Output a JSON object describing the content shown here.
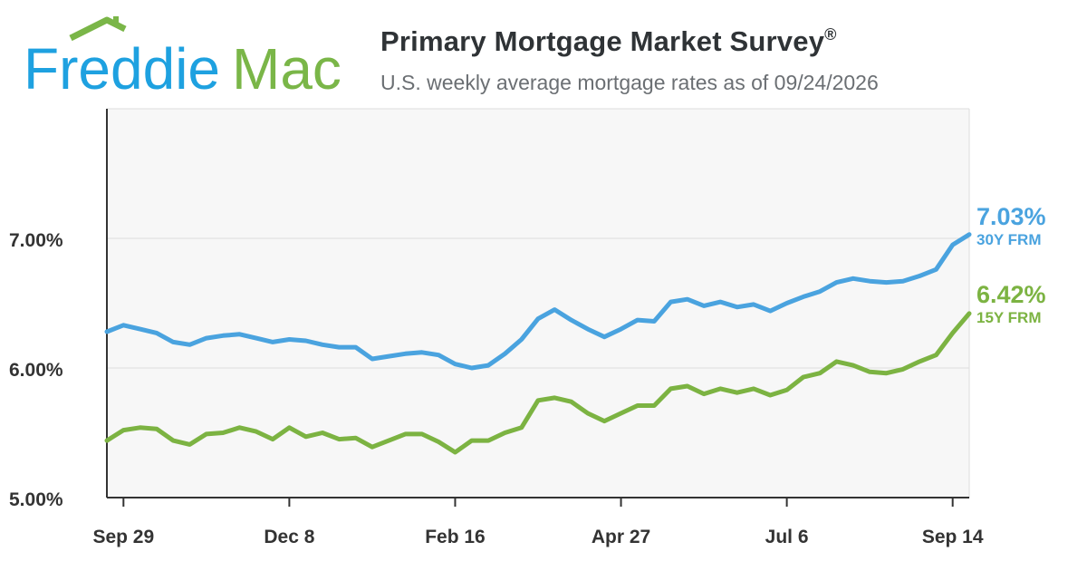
{
  "logo": {
    "text_freddie": "Freddie",
    "text_mac": "Mac",
    "name": "house-roof-logo-icon"
  },
  "header": {
    "title": "Primary Mortgage Market Survey",
    "title_mark": "®",
    "subtitle": "U.S. weekly average mortgage rates as of 09/24/2026"
  },
  "colors": {
    "frm30": "#4aa3df",
    "frm15": "#7cb342",
    "axis": "#333333",
    "grid": "#dddddd",
    "plot_bg": "#f7f7f7",
    "logo_blue": "#1ea1e0",
    "logo_green": "#7ab648"
  },
  "chart_data": {
    "type": "line",
    "title": "Primary Mortgage Market Survey",
    "x_ticks": [
      "Sep 29",
      "Dec 8",
      "Feb 16",
      "Apr 27",
      "Jul 6",
      "Sep 14"
    ],
    "x_tick_week_index": [
      1,
      11,
      21,
      31,
      41,
      51
    ],
    "y_ticks": [
      "5.00%",
      "6.00%",
      "7.00%"
    ],
    "y_tick_values": [
      5,
      6,
      7
    ],
    "ylim": [
      5,
      8
    ],
    "grid": true,
    "series": [
      {
        "name": "30Y FRM",
        "end_label": "7.03%",
        "values": [
          6.28,
          6.33,
          6.3,
          6.27,
          6.2,
          6.18,
          6.23,
          6.25,
          6.26,
          6.23,
          6.2,
          6.22,
          6.21,
          6.18,
          6.16,
          6.16,
          6.07,
          6.09,
          6.11,
          6.12,
          6.1,
          6.03,
          6.0,
          6.02,
          6.11,
          6.22,
          6.38,
          6.45,
          6.37,
          6.3,
          6.24,
          6.3,
          6.37,
          6.36,
          6.51,
          6.53,
          6.48,
          6.51,
          6.47,
          6.49,
          6.44,
          6.5,
          6.55,
          6.59,
          6.66,
          6.69,
          6.67,
          6.66,
          6.67,
          6.71,
          6.76,
          6.95,
          7.03
        ]
      },
      {
        "name": "15Y FRM",
        "end_label": "6.42%",
        "values": [
          5.44,
          5.52,
          5.54,
          5.53,
          5.44,
          5.41,
          5.49,
          5.5,
          5.54,
          5.51,
          5.45,
          5.54,
          5.47,
          5.5,
          5.45,
          5.46,
          5.39,
          5.44,
          5.49,
          5.49,
          5.43,
          5.35,
          5.44,
          5.44,
          5.5,
          5.54,
          5.75,
          5.77,
          5.74,
          5.65,
          5.59,
          5.65,
          5.71,
          5.71,
          5.84,
          5.86,
          5.8,
          5.84,
          5.81,
          5.84,
          5.79,
          5.83,
          5.93,
          5.96,
          6.05,
          6.02,
          5.97,
          5.96,
          5.99,
          6.05,
          6.1,
          6.27,
          6.42
        ]
      }
    ]
  }
}
